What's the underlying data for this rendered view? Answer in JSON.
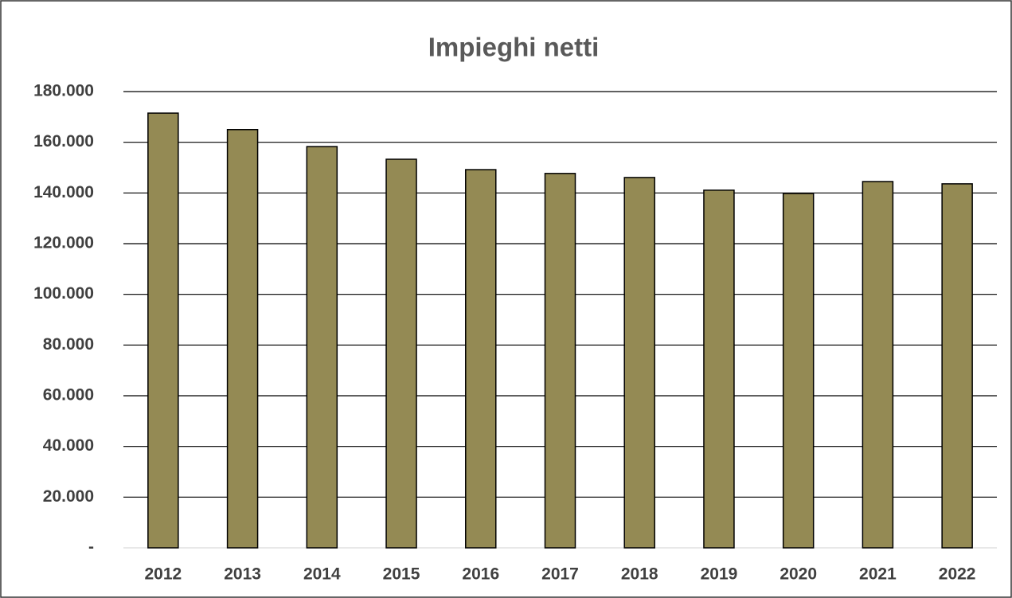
{
  "chart_data": {
    "type": "bar",
    "title": "Impieghi netti",
    "categories": [
      "2012",
      "2013",
      "2014",
      "2015",
      "2016",
      "2017",
      "2018",
      "2019",
      "2020",
      "2021",
      "2022"
    ],
    "values": [
      171500,
      165000,
      158300,
      153300,
      149200,
      147700,
      146100,
      141100,
      139800,
      144500,
      143600
    ],
    "color": "#948a54",
    "ylim": [
      0,
      180000
    ],
    "yticks": [
      {
        "value": 0,
        "label": "-"
      },
      {
        "value": 20000,
        "label": "20.000"
      },
      {
        "value": 40000,
        "label": "40.000"
      },
      {
        "value": 60000,
        "label": "60.000"
      },
      {
        "value": 80000,
        "label": "80.000"
      },
      {
        "value": 100000,
        "label": "100.000"
      },
      {
        "value": 120000,
        "label": "120.000"
      },
      {
        "value": 140000,
        "label": "140.000"
      },
      {
        "value": 160000,
        "label": "160.000"
      },
      {
        "value": 180000,
        "label": "180.000"
      }
    ],
    "grid": true
  }
}
